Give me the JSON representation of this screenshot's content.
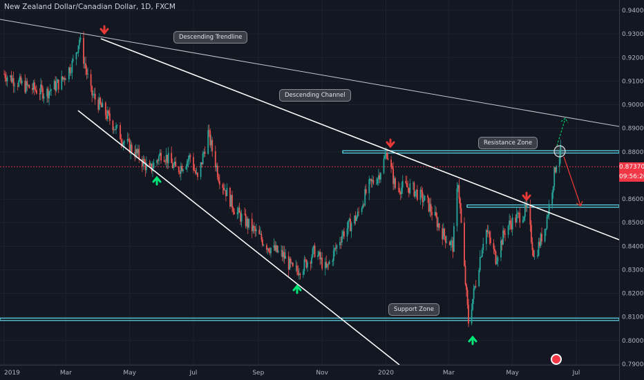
{
  "header": {
    "title": "New Zealand Dollar/Canadian Dollar, 1D, FXCM"
  },
  "price_tag": {
    "price": "0.87370",
    "countdown": "09:56:20"
  },
  "callouts": {
    "descending_trendline": "Descending Trendline",
    "descending_channel": "Descending Channel",
    "resistance_zone": "Resistance Zone",
    "support_zone": "Support Zone"
  },
  "colors": {
    "background": "#131722",
    "candle_up": "#26a69a",
    "candle_down": "#ef5350",
    "zone": "#5ad6e6",
    "trendline": "#ffffff",
    "arrow_up": "#00e676",
    "arrow_down": "#e53935",
    "price_line": "#f23645"
  },
  "chart_data": {
    "type": "candlestick",
    "title": "New Zealand Dollar/Canadian Dollar, 1D, FXCM",
    "symbol": "NZDCAD",
    "ylim": [
      0.788,
      0.944
    ],
    "y_ticks": [
      "0.94000",
      "0.93000",
      "0.92000",
      "0.91000",
      "0.90000",
      "0.89000",
      "0.88000",
      "0.86000",
      "0.85000",
      "0.84000",
      "0.83000",
      "0.82000",
      "0.81000",
      "0.80000",
      "0.79000"
    ],
    "x_ticks": [
      "2019",
      "Mar",
      "May",
      "Jul",
      "Sep",
      "Nov",
      "2020",
      "Mar",
      "May",
      "Jul"
    ],
    "price_path": [
      [
        "2019-01-01",
        0.913
      ],
      [
        "2019-01-20",
        0.908
      ],
      [
        "2019-02-10",
        0.905
      ],
      [
        "2019-02-25",
        0.91
      ],
      [
        "2019-03-08",
        0.918
      ],
      [
        "2019-03-14",
        0.928
      ],
      [
        "2019-03-25",
        0.905
      ],
      [
        "2019-04-10",
        0.895
      ],
      [
        "2019-04-25",
        0.885
      ],
      [
        "2019-05-10",
        0.878
      ],
      [
        "2019-05-20",
        0.872
      ],
      [
        "2019-06-01",
        0.88
      ],
      [
        "2019-06-15",
        0.872
      ],
      [
        "2019-06-28",
        0.878
      ],
      [
        "2019-07-05",
        0.868
      ],
      [
        "2019-07-15",
        0.888
      ],
      [
        "2019-07-25",
        0.87
      ],
      [
        "2019-08-10",
        0.855
      ],
      [
        "2019-08-25",
        0.848
      ],
      [
        "2019-09-10",
        0.84
      ],
      [
        "2019-09-25",
        0.836
      ],
      [
        "2019-10-05",
        0.829
      ],
      [
        "2019-10-15",
        0.832
      ],
      [
        "2019-10-25",
        0.838
      ],
      [
        "2019-11-05",
        0.83
      ],
      [
        "2019-11-20",
        0.845
      ],
      [
        "2019-12-05",
        0.853
      ],
      [
        "2019-12-15",
        0.865
      ],
      [
        "2019-12-25",
        0.87
      ],
      [
        "2020-01-02",
        0.88
      ],
      [
        "2020-01-10",
        0.865
      ],
      [
        "2020-01-25",
        0.865
      ],
      [
        "2020-02-10",
        0.858
      ],
      [
        "2020-02-25",
        0.845
      ],
      [
        "2020-03-05",
        0.84
      ],
      [
        "2020-03-10",
        0.868
      ],
      [
        "2020-03-16",
        0.83
      ],
      [
        "2020-03-20",
        0.808
      ],
      [
        "2020-03-27",
        0.825
      ],
      [
        "2020-04-05",
        0.848
      ],
      [
        "2020-04-15",
        0.835
      ],
      [
        "2020-04-25",
        0.848
      ],
      [
        "2020-05-05",
        0.852
      ],
      [
        "2020-05-15",
        0.855
      ],
      [
        "2020-05-22",
        0.835
      ],
      [
        "2020-06-01",
        0.848
      ],
      [
        "2020-06-05",
        0.857
      ],
      [
        "2020-06-12",
        0.876
      ],
      [
        "2020-06-16",
        0.88
      ]
    ],
    "current_price": 0.8737,
    "resistance_zone": [
      0.8795,
      0.8805
    ],
    "mid_zone": [
      0.8565,
      0.8575
    ],
    "support_zone": [
      0.8085,
      0.8095
    ],
    "annotations": [
      "Descending Trendline",
      "Descending Channel",
      "Resistance Zone",
      "Support Zone"
    ]
  }
}
